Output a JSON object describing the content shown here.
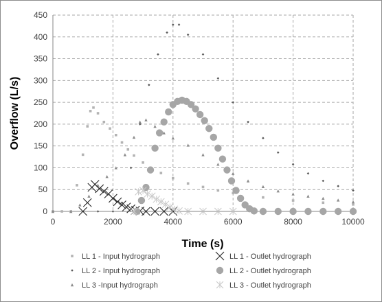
{
  "chart_data": {
    "type": "scatter",
    "xlabel": "Time (s)",
    "ylabel": "Overflow (L/s)",
    "xlim": [
      0,
      10000
    ],
    "ylim": [
      0,
      450
    ],
    "xticks": [
      0,
      2000,
      4000,
      6000,
      8000,
      10000
    ],
    "yticks": [
      0,
      50,
      100,
      150,
      200,
      250,
      300,
      350,
      400,
      450
    ],
    "grid": "dashed",
    "legend_position": "bottom",
    "series": [
      {
        "name": "LL 1 - Input hydrograph",
        "marker": "square",
        "color": "#b3b3b3",
        "points": [
          [
            0,
            0
          ],
          [
            300,
            0
          ],
          [
            600,
            0
          ],
          [
            800,
            60
          ],
          [
            1000,
            130
          ],
          [
            1150,
            195
          ],
          [
            1250,
            230
          ],
          [
            1350,
            238
          ],
          [
            1500,
            225
          ],
          [
            1700,
            205
          ],
          [
            1900,
            190
          ],
          [
            2100,
            175
          ],
          [
            2300,
            158
          ],
          [
            2500,
            142
          ],
          [
            2700,
            128
          ],
          [
            3000,
            112
          ],
          [
            3300,
            98
          ],
          [
            3600,
            88
          ],
          [
            4000,
            76
          ],
          [
            4500,
            64
          ],
          [
            5000,
            56
          ],
          [
            5500,
            48
          ],
          [
            6000,
            42
          ],
          [
            7000,
            32
          ],
          [
            8000,
            25
          ],
          [
            9000,
            20
          ],
          [
            10000,
            16
          ]
        ]
      },
      {
        "name": "LL 2 - Input hydrograph",
        "marker": "diamond",
        "color": "#595959",
        "points": [
          [
            0,
            0
          ],
          [
            1500,
            0
          ],
          [
            2000,
            0
          ],
          [
            2300,
            20
          ],
          [
            2600,
            100
          ],
          [
            2900,
            200
          ],
          [
            3200,
            290
          ],
          [
            3500,
            360
          ],
          [
            3800,
            410
          ],
          [
            4000,
            428
          ],
          [
            4200,
            428
          ],
          [
            4500,
            405
          ],
          [
            5000,
            360
          ],
          [
            5500,
            305
          ],
          [
            6000,
            250
          ],
          [
            6500,
            205
          ],
          [
            7000,
            168
          ],
          [
            7500,
            135
          ],
          [
            8000,
            108
          ],
          [
            8500,
            87
          ],
          [
            9000,
            70
          ],
          [
            9500,
            58
          ],
          [
            10000,
            48
          ]
        ]
      },
      {
        "name": "LL 3 -Input hydrograph",
        "marker": "triangle",
        "color": "#8c8c8c",
        "points": [
          [
            0,
            0
          ],
          [
            600,
            0
          ],
          [
            900,
            15
          ],
          [
            1200,
            35
          ],
          [
            1500,
            60
          ],
          [
            1800,
            80
          ],
          [
            2100,
            100
          ],
          [
            2400,
            130
          ],
          [
            2700,
            170
          ],
          [
            2900,
            205
          ],
          [
            3100,
            210
          ],
          [
            3400,
            195
          ],
          [
            3700,
            180
          ],
          [
            4000,
            168
          ],
          [
            4500,
            152
          ],
          [
            5000,
            130
          ],
          [
            5500,
            108
          ],
          [
            6000,
            87
          ],
          [
            6500,
            70
          ],
          [
            7000,
            57
          ],
          [
            7500,
            47
          ],
          [
            8000,
            40
          ],
          [
            8500,
            35
          ],
          [
            9000,
            30
          ],
          [
            9500,
            26
          ],
          [
            10000,
            22
          ]
        ]
      },
      {
        "name": "LL 1 - Outlet hydrograph",
        "marker": "x",
        "color": "#262626",
        "points": [
          [
            1000,
            0
          ],
          [
            1150,
            20
          ],
          [
            1300,
            55
          ],
          [
            1400,
            62
          ],
          [
            1550,
            52
          ],
          [
            1700,
            46
          ],
          [
            1850,
            40
          ],
          [
            2000,
            30
          ],
          [
            2150,
            22
          ],
          [
            2300,
            15
          ],
          [
            2450,
            10
          ],
          [
            2600,
            6
          ],
          [
            2750,
            3
          ],
          [
            2900,
            1
          ],
          [
            3100,
            0
          ],
          [
            3400,
            0
          ],
          [
            3700,
            0
          ],
          [
            4000,
            0
          ]
        ]
      },
      {
        "name": "LL 2 - Outlet hydrograph",
        "marker": "circle",
        "color": "#a6a6a6",
        "points": [
          [
            2800,
            0
          ],
          [
            2950,
            25
          ],
          [
            3100,
            55
          ],
          [
            3250,
            95
          ],
          [
            3400,
            145
          ],
          [
            3550,
            180
          ],
          [
            3700,
            205
          ],
          [
            3850,
            228
          ],
          [
            4000,
            245
          ],
          [
            4150,
            252
          ],
          [
            4300,
            255
          ],
          [
            4450,
            252
          ],
          [
            4600,
            245
          ],
          [
            4750,
            235
          ],
          [
            4900,
            222
          ],
          [
            5050,
            208
          ],
          [
            5200,
            190
          ],
          [
            5350,
            170
          ],
          [
            5500,
            145
          ],
          [
            5650,
            120
          ],
          [
            5800,
            95
          ],
          [
            5950,
            70
          ],
          [
            6100,
            48
          ],
          [
            6250,
            30
          ],
          [
            6400,
            15
          ],
          [
            6550,
            6
          ],
          [
            6700,
            1
          ],
          [
            7000,
            0
          ],
          [
            7500,
            0
          ],
          [
            8000,
            0
          ],
          [
            8500,
            0
          ],
          [
            9000,
            0
          ],
          [
            9500,
            0
          ],
          [
            10000,
            0
          ]
        ]
      },
      {
        "name": "LL 3 - Outlet hydrograph",
        "marker": "star",
        "color": "#c8c8c8",
        "points": [
          [
            2700,
            0
          ],
          [
            2850,
            45
          ],
          [
            3000,
            48
          ],
          [
            3150,
            40
          ],
          [
            3300,
            35
          ],
          [
            3450,
            28
          ],
          [
            3600,
            22
          ],
          [
            3750,
            16
          ],
          [
            3900,
            10
          ],
          [
            4050,
            5
          ],
          [
            4200,
            1
          ],
          [
            4500,
            0
          ],
          [
            5000,
            0
          ],
          [
            5500,
            0
          ],
          [
            6000,
            0
          ]
        ]
      }
    ]
  }
}
